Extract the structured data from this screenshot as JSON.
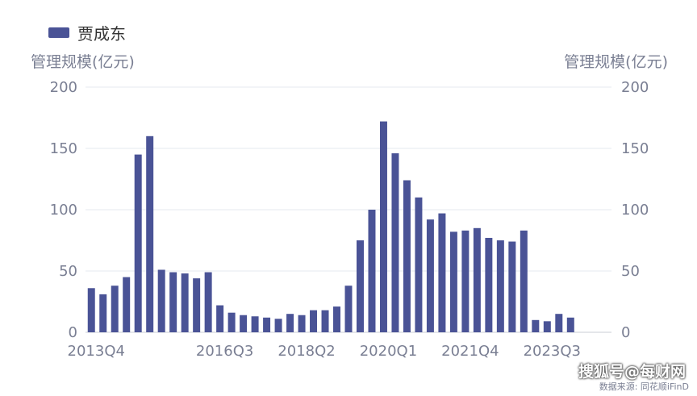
{
  "legend": {
    "label": "贾成东",
    "color": "#4a5396"
  },
  "axes": {
    "left_title": "管理规模(亿元)",
    "right_title": "管理规模(亿元)"
  },
  "watermark": "搜狐号@每财网",
  "source": "数据来源: 同花顺iFinD",
  "chart_data": {
    "type": "bar",
    "categories": [
      "2013Q4",
      "2014Q1",
      "2014Q2",
      "2014Q3",
      "2014Q4",
      "2015Q1",
      "2015Q2",
      "2015Q3",
      "2015Q4",
      "2016Q1",
      "2016Q2",
      "2016Q3",
      "2016Q4",
      "2017Q1",
      "2017Q2",
      "2017Q3",
      "2017Q4",
      "2018Q1",
      "2018Q2",
      "2018Q3",
      "2018Q4",
      "2019Q1",
      "2019Q2",
      "2019Q3",
      "2019Q4",
      "2020Q1",
      "2020Q2",
      "2020Q3",
      "2020Q4",
      "2021Q1",
      "2021Q2",
      "2021Q3",
      "2021Q4",
      "2022Q1",
      "2022Q2",
      "2022Q3",
      "2022Q4",
      "2023Q1",
      "2023Q2",
      "2023Q3",
      "2023Q4",
      "2024Q1",
      "2024Q2",
      "2024Q3",
      "2024Q4"
    ],
    "x_tick_labels": [
      "2013Q4",
      "2016Q3",
      "2018Q2",
      "2020Q1",
      "2021Q4",
      "2023Q3"
    ],
    "x_tick_indices": [
      0,
      11,
      18,
      25,
      32,
      39
    ],
    "series": [
      {
        "name": "贾成东",
        "values": [
          36,
          31,
          38,
          45,
          145,
          160,
          51,
          49,
          48,
          44,
          49,
          22,
          16,
          14,
          13,
          12,
          11,
          15,
          14,
          18,
          18,
          21,
          38,
          75,
          100,
          172,
          146,
          124,
          110,
          92,
          97,
          82,
          83,
          85,
          77,
          75,
          74,
          83,
          10,
          9,
          15,
          12,
          0,
          0,
          0
        ]
      }
    ],
    "ylim": [
      0,
      200
    ],
    "y_ticks": [
      0,
      50,
      100,
      150,
      200
    ],
    "grid": true
  }
}
